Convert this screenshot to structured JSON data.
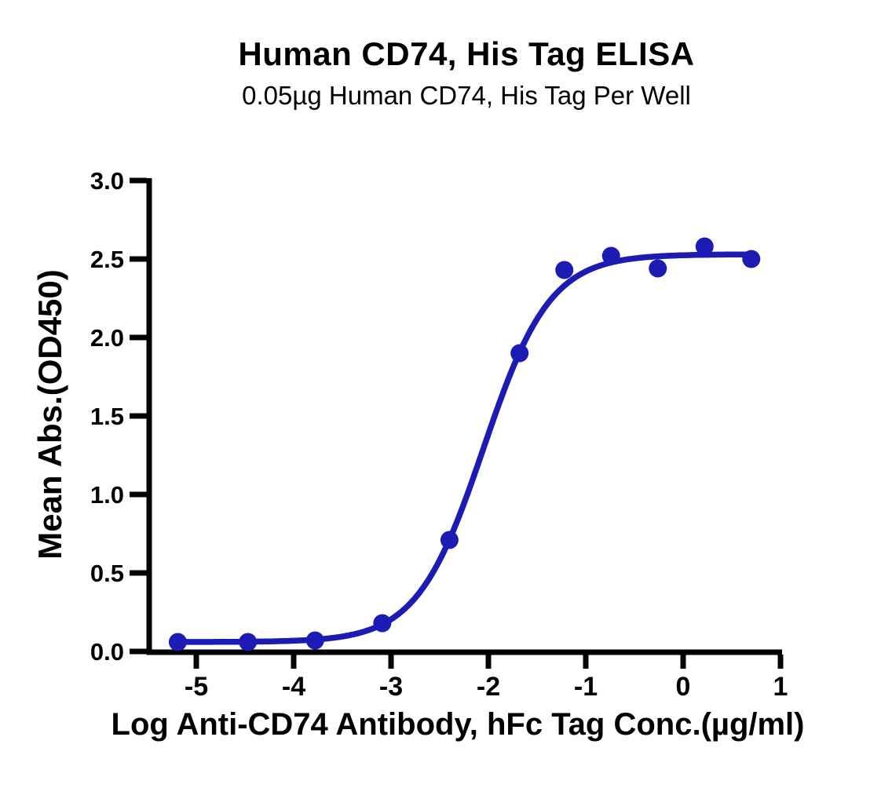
{
  "page": {
    "background": "#ffffff",
    "text_color": "#000000"
  },
  "chart_data": {
    "type": "scatter",
    "title": "Human CD74, His Tag ELISA",
    "subtitle": "0.05µg Human CD74, His Tag Per Well",
    "xlabel": "Log Anti-CD74 Antibody, hFc Tag Conc.(µg/ml)",
    "ylabel": "Mean Abs.(OD450)",
    "x": [
      -5.19,
      -4.47,
      -3.78,
      -3.09,
      -2.4,
      -1.68,
      -1.22,
      -0.74,
      -0.26,
      0.22,
      0.7
    ],
    "y": [
      0.06,
      0.06,
      0.07,
      0.18,
      0.71,
      1.9,
      2.43,
      2.52,
      2.44,
      2.58,
      2.5
    ],
    "x_ticks": {
      "values": [
        -5,
        -4,
        -3,
        -2,
        -1,
        0,
        1
      ],
      "labels": [
        "-5",
        "-4",
        "-3",
        "-2",
        "-1",
        "0",
        "1"
      ]
    },
    "y_ticks": {
      "values": [
        0,
        0.5,
        1,
        1.5,
        2,
        2.5,
        3
      ],
      "labels": [
        "0.0",
        "0.5",
        "1.0",
        "1.5",
        "2.0",
        "2.5",
        "3.0"
      ]
    },
    "xlim": [
      -5.52,
      1.02
    ],
    "ylim": [
      0,
      3.02
    ],
    "grid": false,
    "legend": false,
    "line_color": "#1c1cb4",
    "marker_color": "#1c1cb4",
    "axis_color": "#000000",
    "fit_curve": {
      "model": "4PL sigmoidal dose-response",
      "bottom": 0.06,
      "top": 2.53,
      "log_ec50": -2.05,
      "hill_slope": 1.27,
      "x_start": -5.19,
      "x_end": 0.72
    }
  }
}
